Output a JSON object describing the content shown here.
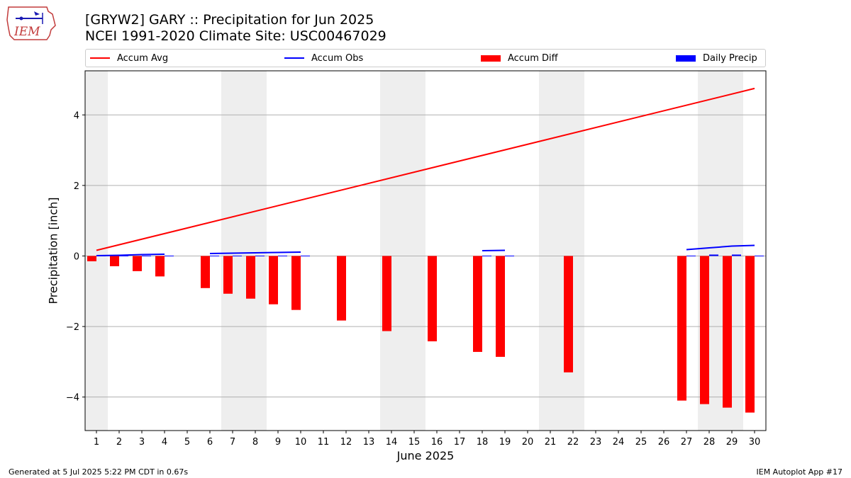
{
  "title_line1": "[GRYW2] GARY :: Precipitation for Jun 2025",
  "title_line2": "NCEI 1991-2020 Climate Site: USC00467029",
  "footer_left": "Generated at 5 Jul 2025 5:22 PM CDT in 0.67s",
  "footer_right": "IEM Autoplot App #17",
  "logo_text": "IEM",
  "colors": {
    "avg": "#ff0000",
    "obs": "#0000ff",
    "diff": "#ff0000",
    "daily": "#0000ff",
    "weekend": "#eeeeee",
    "grid": "#b0b0b0"
  },
  "chart_data": {
    "type": "bar",
    "title": "[GRYW2] GARY :: Precipitation for Jun 2025",
    "subtitle": "NCEI 1991-2020 Climate Site: USC00467029",
    "xlabel": "June 2025",
    "ylabel": "Precipitation [inch]",
    "xlim": [
      0.5,
      30.5
    ],
    "ylim": [
      -4.95,
      5.25
    ],
    "yticks": [
      -4,
      -2,
      0,
      2,
      4
    ],
    "ytick_labels": [
      "−4",
      "−2",
      "0",
      "2",
      "4"
    ],
    "days": [
      1,
      2,
      3,
      4,
      5,
      6,
      7,
      8,
      9,
      10,
      11,
      12,
      13,
      14,
      15,
      16,
      17,
      18,
      19,
      20,
      21,
      22,
      23,
      24,
      25,
      26,
      27,
      28,
      29,
      30
    ],
    "weekend_spans": [
      [
        0.5,
        1.5
      ],
      [
        6.5,
        8.5
      ],
      [
        13.5,
        15.5
      ],
      [
        20.5,
        22.5
      ],
      [
        27.5,
        29.5
      ]
    ],
    "grid": true,
    "legend_position": "top",
    "legend": [
      "Accum Avg",
      "Accum Obs",
      "Accum Diff",
      "Daily Precip"
    ],
    "series": [
      {
        "name": "Accum Avg",
        "kind": "line",
        "x": [
          1,
          30
        ],
        "values": [
          0.16,
          4.75
        ]
      },
      {
        "name": "Accum Obs",
        "kind": "line-segments",
        "segments": [
          {
            "x": [
              1,
              2,
              3,
              4
            ],
            "values": [
              0.01,
              0.02,
              0.04,
              0.05
            ]
          },
          {
            "x": [
              6,
              7,
              8,
              9,
              10
            ],
            "values": [
              0.07,
              0.08,
              0.09,
              0.1,
              0.11
            ]
          },
          {
            "x": [
              18,
              19
            ],
            "values": [
              0.15,
              0.16
            ]
          },
          {
            "x": [
              27,
              28,
              29,
              30
            ],
            "values": [
              0.18,
              0.23,
              0.28,
              0.3
            ]
          }
        ]
      },
      {
        "name": "Accum Diff",
        "kind": "bar",
        "x": [
          1,
          2,
          3,
          4,
          6,
          7,
          8,
          9,
          10,
          12,
          14,
          16,
          18,
          19,
          22,
          27,
          28,
          29,
          30
        ],
        "values": [
          -0.15,
          -0.29,
          -0.43,
          -0.58,
          -0.91,
          -1.07,
          -1.21,
          -1.37,
          -1.53,
          -1.83,
          -2.13,
          -2.42,
          -2.72,
          -2.86,
          -3.3,
          -4.1,
          -4.2,
          -4.3,
          -4.44
        ]
      },
      {
        "name": "Daily Precip",
        "kind": "bar",
        "x": [
          1,
          2,
          3,
          4,
          6,
          7,
          8,
          9,
          10,
          18,
          19,
          27,
          28,
          29,
          30
        ],
        "values": [
          0.01,
          0.01,
          0.01,
          0.01,
          0.01,
          0.01,
          0.01,
          0.01,
          0.01,
          0.01,
          0.01,
          0.01,
          0.04,
          0.04,
          0.01
        ]
      }
    ]
  }
}
